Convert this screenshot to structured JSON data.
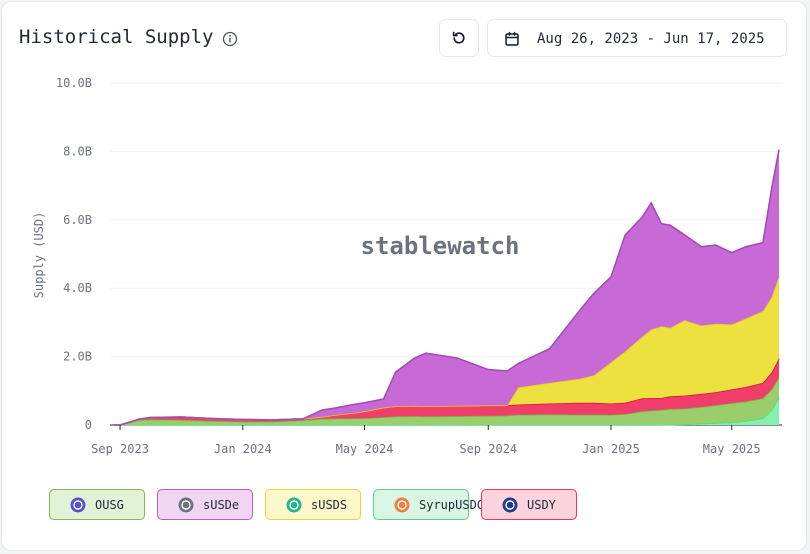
{
  "header": {
    "title": "Historical Supply",
    "date_range": "Aug 26, 2023 - Jun 17, 2025"
  },
  "icons": {
    "info": "info-circle-icon",
    "reset": "refresh-icon",
    "calendar": "calendar-icon"
  },
  "watermark": "stablewatch",
  "legend": [
    {
      "label": "OUSG",
      "bg": "#e2f2d6",
      "border": "#7dbb4f",
      "icon_color": "#5b4fd1"
    },
    {
      "label": "sUSDe",
      "bg": "#f0d6f3",
      "border": "#b75dc9",
      "icon_color": "#6b7280"
    },
    {
      "label": "sUSDS",
      "bg": "#fbf7c9",
      "border": "#e4d640",
      "icon_color": "#22b48a"
    },
    {
      "label": "SyrupUSDC",
      "bg": "#d9f5e3",
      "border": "#5fcf8f",
      "icon_color": "#f07c43"
    },
    {
      "label": "USDY",
      "bg": "#fbd3dc",
      "border": "#e3375f",
      "icon_color": "#1e3a8a"
    }
  ],
  "chart_data": {
    "type": "area",
    "stacked": true,
    "ylabel": "Supply (USD)",
    "xlabel": "",
    "ylim": [
      0,
      10000000000
    ],
    "yticks": [
      "0",
      "2.0B",
      "4.0B",
      "6.0B",
      "8.0B",
      "10.0B"
    ],
    "xticks": [
      "Sep 2023",
      "Jan 2024",
      "May 2024",
      "Sep 2024",
      "Jan 2025",
      "May 2025"
    ],
    "grid": true,
    "x": [
      "2023-08-26",
      "2023-09-01",
      "2023-09-20",
      "2023-10-01",
      "2023-11-01",
      "2023-12-01",
      "2024-01-01",
      "2024-02-01",
      "2024-03-01",
      "2024-03-20",
      "2024-04-01",
      "2024-04-20",
      "2024-05-01",
      "2024-05-20",
      "2024-06-01",
      "2024-06-20",
      "2024-07-01",
      "2024-08-01",
      "2024-09-01",
      "2024-09-20",
      "2024-10-01",
      "2024-11-01",
      "2024-12-01",
      "2024-12-15",
      "2025-01-01",
      "2025-01-15",
      "2025-02-01",
      "2025-02-10",
      "2025-02-20",
      "2025-03-01",
      "2025-03-15",
      "2025-04-01",
      "2025-04-15",
      "2025-05-01",
      "2025-05-15",
      "2025-06-01",
      "2025-06-10",
      "2025-06-17"
    ],
    "series": [
      {
        "name": "SyrupUSDC",
        "color": "#86efac",
        "values": [
          0,
          0,
          0,
          0,
          0,
          0,
          0,
          0,
          0,
          0,
          0,
          0,
          0,
          0,
          0,
          0,
          0,
          0,
          0,
          0,
          0,
          0,
          0,
          0,
          0,
          0,
          0,
          0,
          0,
          10000000,
          20000000,
          40000000,
          60000000,
          80000000,
          120000000,
          200000000,
          450000000,
          800000000
        ]
      },
      {
        "name": "OUSG",
        "color": "#9acd6b",
        "values": [
          0,
          0,
          150000000,
          160000000,
          150000000,
          120000000,
          100000000,
          100000000,
          140000000,
          180000000,
          190000000,
          200000000,
          200000000,
          230000000,
          250000000,
          260000000,
          250000000,
          260000000,
          270000000,
          280000000,
          300000000,
          310000000,
          300000000,
          300000000,
          300000000,
          320000000,
          400000000,
          420000000,
          440000000,
          460000000,
          460000000,
          490000000,
          520000000,
          560000000,
          570000000,
          580000000,
          600000000,
          600000000
        ]
      },
      {
        "name": "USDY",
        "color": "#ef3e6a",
        "values": [
          0,
          0,
          20000000,
          60000000,
          80000000,
          70000000,
          60000000,
          50000000,
          40000000,
          60000000,
          100000000,
          150000000,
          200000000,
          280000000,
          300000000,
          300000000,
          300000000,
          300000000,
          300000000,
          300000000,
          300000000,
          320000000,
          350000000,
          350000000,
          330000000,
          330000000,
          380000000,
          370000000,
          350000000,
          370000000,
          380000000,
          380000000,
          380000000,
          400000000,
          420000000,
          450000000,
          500000000,
          550000000
        ]
      },
      {
        "name": "sUSDS",
        "color": "#ece13f",
        "values": [
          0,
          0,
          0,
          0,
          0,
          0,
          0,
          0,
          0,
          0,
          0,
          0,
          0,
          0,
          0,
          0,
          0,
          0,
          0,
          0,
          500000000,
          600000000,
          700000000,
          800000000,
          1200000000,
          1500000000,
          1800000000,
          2000000000,
          2100000000,
          2000000000,
          2200000000,
          2000000000,
          2000000000,
          1900000000,
          2000000000,
          2100000000,
          2200000000,
          2400000000
        ]
      },
      {
        "name": "sUSDe",
        "color": "#c86ad6",
        "values": [
          0,
          0,
          0,
          0,
          0,
          0,
          0,
          0,
          0,
          200000000,
          200000000,
          250000000,
          250000000,
          250000000,
          1000000000,
          1400000000,
          1550000000,
          1400000000,
          1050000000,
          1000000000,
          700000000,
          1000000000,
          2000000000,
          2400000000,
          2500000000,
          3400000000,
          3500000000,
          3700000000,
          3000000000,
          3000000000,
          2500000000,
          2300000000,
          2300000000,
          2100000000,
          2100000000,
          2000000000,
          3200000000,
          3700000000
        ]
      }
    ]
  }
}
